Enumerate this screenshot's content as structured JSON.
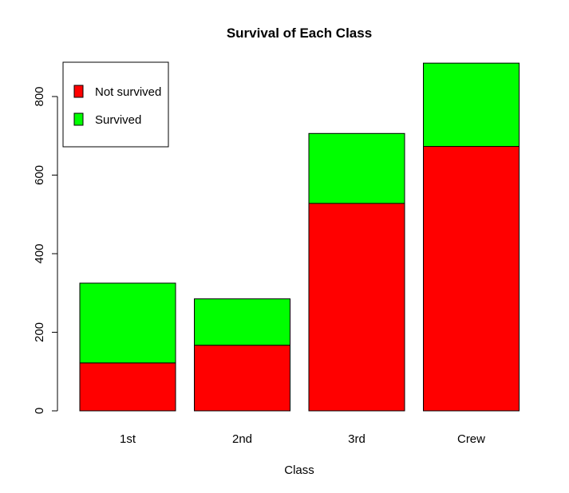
{
  "chart_data": {
    "type": "bar",
    "stacked": true,
    "title": "Survival of Each Class",
    "xlabel": "Class",
    "ylabel": "",
    "categories": [
      "1st",
      "2nd",
      "3rd",
      "Crew"
    ],
    "series": [
      {
        "name": "Not survived",
        "values": [
          122,
          167,
          528,
          673
        ],
        "color": "#ff0000"
      },
      {
        "name": "Survived",
        "values": [
          203,
          118,
          178,
          212
        ],
        "color": "#00ff00"
      }
    ],
    "ylim": [
      0,
      885
    ],
    "yticks": [
      0,
      200,
      400,
      600,
      800
    ],
    "legend_position": "top-left",
    "grid": false
  }
}
